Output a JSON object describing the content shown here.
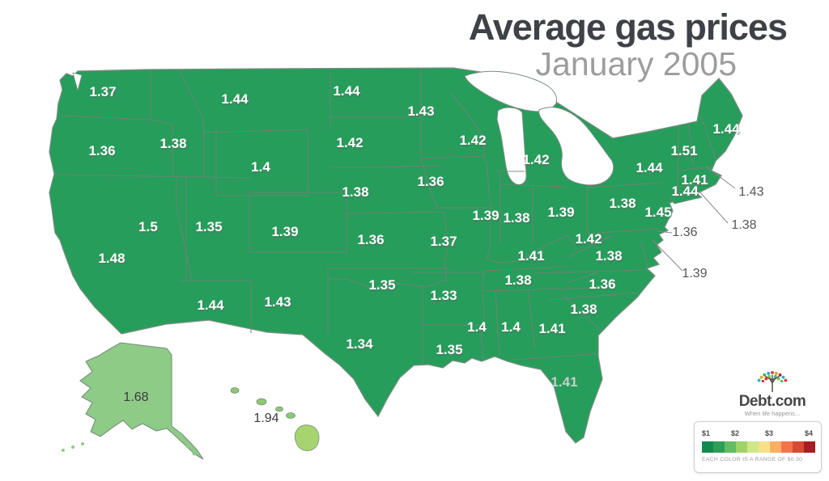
{
  "title": "Average gas prices",
  "subtitle": "January 2005",
  "map": {
    "region": "United States",
    "unit": "USD per gallon",
    "states": [
      {
        "abbr": "WA",
        "name": "Washington",
        "price": "1.37"
      },
      {
        "abbr": "OR",
        "name": "Oregon",
        "price": "1.36"
      },
      {
        "abbr": "CA",
        "name": "California",
        "price": "1.48"
      },
      {
        "abbr": "NV",
        "name": "Nevada",
        "price": "1.5"
      },
      {
        "abbr": "ID",
        "name": "Idaho",
        "price": "1.38"
      },
      {
        "abbr": "MT",
        "name": "Montana",
        "price": "1.44"
      },
      {
        "abbr": "WY",
        "name": "Wyoming",
        "price": "1.4"
      },
      {
        "abbr": "UT",
        "name": "Utah",
        "price": "1.35"
      },
      {
        "abbr": "CO",
        "name": "Colorado",
        "price": "1.39"
      },
      {
        "abbr": "AZ",
        "name": "Arizona",
        "price": "1.44"
      },
      {
        "abbr": "NM",
        "name": "New Mexico",
        "price": "1.43"
      },
      {
        "abbr": "ND",
        "name": "North Dakota",
        "price": "1.44"
      },
      {
        "abbr": "SD",
        "name": "South Dakota",
        "price": "1.42"
      },
      {
        "abbr": "NE",
        "name": "Nebraska",
        "price": "1.38"
      },
      {
        "abbr": "KS",
        "name": "Kansas",
        "price": "1.36"
      },
      {
        "abbr": "OK",
        "name": "Oklahoma",
        "price": "1.35"
      },
      {
        "abbr": "TX",
        "name": "Texas",
        "price": "1.34"
      },
      {
        "abbr": "MN",
        "name": "Minnesota",
        "price": "1.43"
      },
      {
        "abbr": "IA",
        "name": "Iowa",
        "price": "1.36"
      },
      {
        "abbr": "MO",
        "name": "Missouri",
        "price": "1.37"
      },
      {
        "abbr": "AR",
        "name": "Arkansas",
        "price": "1.33"
      },
      {
        "abbr": "LA",
        "name": "Louisiana",
        "price": "1.35"
      },
      {
        "abbr": "WI",
        "name": "Wisconsin",
        "price": "1.42"
      },
      {
        "abbr": "IL",
        "name": "Illinois",
        "price": "1.39"
      },
      {
        "abbr": "IN",
        "name": "Indiana",
        "price": "1.38"
      },
      {
        "abbr": "MI",
        "name": "Michigan",
        "price": "1.42"
      },
      {
        "abbr": "OH",
        "name": "Ohio",
        "price": "1.39"
      },
      {
        "abbr": "KY",
        "name": "Kentucky",
        "price": "1.41"
      },
      {
        "abbr": "TN",
        "name": "Tennessee",
        "price": "1.38"
      },
      {
        "abbr": "MS",
        "name": "Mississippi",
        "price": "1.4"
      },
      {
        "abbr": "AL",
        "name": "Alabama",
        "price": "1.4"
      },
      {
        "abbr": "GA",
        "name": "Georgia",
        "price": "1.41"
      },
      {
        "abbr": "FL",
        "name": "Florida",
        "price": "1.41"
      },
      {
        "abbr": "SC",
        "name": "South Carolina",
        "price": "1.38"
      },
      {
        "abbr": "NC",
        "name": "North Carolina",
        "price": "1.36"
      },
      {
        "abbr": "VA",
        "name": "Virginia",
        "price": "1.38"
      },
      {
        "abbr": "WV",
        "name": "West Virginia",
        "price": "1.42"
      },
      {
        "abbr": "PA",
        "name": "Pennsylvania",
        "price": "1.38"
      },
      {
        "abbr": "NY",
        "name": "New York",
        "price": "1.44"
      },
      {
        "abbr": "NJ",
        "name": "New Jersey",
        "price": "1.45"
      },
      {
        "abbr": "ME",
        "name": "Maine",
        "price": "1.44"
      },
      {
        "abbr": "VT",
        "name": "Vermont",
        "price": "1.51"
      },
      {
        "abbr": "NH",
        "name": "New Hampshire",
        "price": "1.43",
        "callout": true
      },
      {
        "abbr": "MA",
        "name": "Massachusetts",
        "price": "1.41"
      },
      {
        "abbr": "CT",
        "name": "Connecticut",
        "price": "1.44"
      },
      {
        "abbr": "RI",
        "name": "Rhode Island",
        "price": "1.38",
        "callout": true
      },
      {
        "abbr": "DE",
        "name": "Delaware",
        "price": "1.36",
        "callout": true
      },
      {
        "abbr": "MD",
        "name": "Maryland",
        "price": "1.39",
        "callout": true
      },
      {
        "abbr": "AK",
        "name": "Alaska",
        "price": "1.68"
      },
      {
        "abbr": "HI",
        "name": "Hawaii",
        "price": "1.94"
      }
    ]
  },
  "legend": {
    "ticks": [
      "$1",
      "$2",
      "$3",
      "$4"
    ],
    "caption": "EACH COLOR IS A RANGE OF $0.30",
    "colors": [
      "#128a4d",
      "#2f9e55",
      "#63bc64",
      "#9fd36a",
      "#cfe68b",
      "#f9e08c",
      "#fbae66",
      "#f3744c",
      "#d84a35",
      "#a81d26"
    ]
  },
  "logo": {
    "brand": "Debt.com",
    "tagline": "When life happens...",
    "icon": "tree-icon"
  },
  "colors": {
    "state_fill": "#279d5b",
    "alaska_fill": "#8ecb87",
    "hawaii_small_fill": "#8cc973",
    "hawaii_big_fill": "#a6d46e",
    "border": "#6f8478",
    "title": "#3e4247",
    "subtitle": "#9d9d9d"
  }
}
